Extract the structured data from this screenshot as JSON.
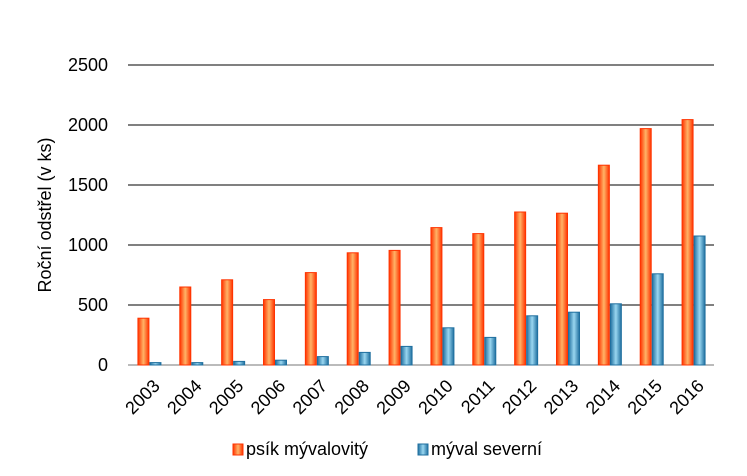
{
  "chart_data": {
    "type": "bar",
    "title": "",
    "xlabel": "",
    "ylabel": "Roční odstřel (v ks)",
    "ylim": [
      0,
      2500
    ],
    "yticks": [
      0,
      500,
      1000,
      1500,
      2000,
      2500
    ],
    "grid": true,
    "legend_position": "bottom",
    "categories": [
      "2003",
      "2004",
      "2005",
      "2006",
      "2007",
      "2008",
      "2009",
      "2010",
      "2011",
      "2012",
      "2013",
      "2014",
      "2015",
      "2016"
    ],
    "series": [
      {
        "name": "psík mývalovitý",
        "color": "#ff3300",
        "fill_light": "#ffb366",
        "values": [
          390,
          650,
          710,
          545,
          770,
          935,
          955,
          1145,
          1095,
          1275,
          1265,
          1665,
          1970,
          2045
        ]
      },
      {
        "name": "mýval severní",
        "color": "#1f6f9f",
        "fill_light": "#99d6f0",
        "values": [
          20,
          20,
          30,
          40,
          70,
          105,
          155,
          310,
          230,
          410,
          440,
          510,
          760,
          1075
        ]
      }
    ]
  }
}
